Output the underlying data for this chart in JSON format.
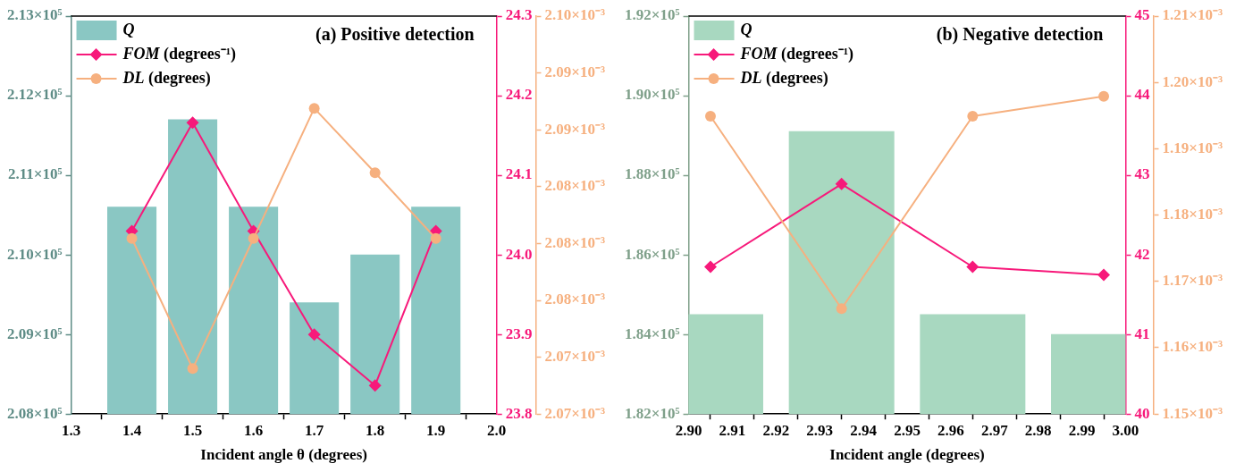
{
  "chart_data": [
    {
      "type": "bar",
      "title": "(a) Positive detection",
      "xlabel": "Incident angle θ (degrees)",
      "legend": "top left",
      "grid": false,
      "x": [
        1.4,
        1.5,
        1.6,
        1.7,
        1.8,
        1.9
      ],
      "xlim": [
        1.3,
        2.0
      ],
      "xticks": [
        1.3,
        1.4,
        1.5,
        1.6,
        1.7,
        1.8,
        1.9,
        {
          "value": 2,
          "label": "2.0"
        }
      ],
      "ylim": [
        208000,
        213000
      ],
      "yticks": [
        {
          "value": 208000,
          "label": "2.08×10⁵"
        },
        {
          "value": 209000,
          "label": "2.09×10⁵"
        },
        {
          "value": 210000,
          "label": "2.10×10⁵"
        },
        {
          "value": 211000,
          "label": "2.11×10⁵"
        },
        {
          "value": 212000,
          "label": "2.12×10⁵"
        },
        {
          "value": 213000,
          "label": "2.13×10⁵"
        }
      ],
      "y2lim": [
        23.8,
        24.3
      ],
      "y2ticks": [
        23.8,
        23.9,
        {
          "value": 24,
          "label": "24.0"
        },
        24.1,
        24.2,
        24.3
      ],
      "y3lim": [
        0.0020665,
        0.002098
      ],
      "y3ticks": [
        {
          "value": 0.0020665,
          "label": "2.07×10⁻³"
        },
        {
          "value": 0.002071,
          "label": "2.07×10⁻³"
        },
        {
          "value": 0.0020755,
          "label": "2.08×10⁻³"
        },
        {
          "value": 0.00208,
          "label": "2.08×10⁻³"
        },
        {
          "value": 0.0020845,
          "label": "2.08×10⁻³"
        },
        {
          "value": 0.002089,
          "label": "2.09×10⁻³"
        },
        {
          "value": 0.0020935,
          "label": "2.09×10⁻³"
        },
        {
          "value": 0.002098,
          "label": "2.10×10⁻³"
        }
      ],
      "series": [
        {
          "name": "Q",
          "color": "#8ac7c3",
          "values": [
            210600,
            211700,
            210600,
            209400,
            210000,
            210600
          ]
        },
        {
          "name": "FOM (degrees⁻¹)",
          "type": "line",
          "axis": "y2",
          "marker": "diamond",
          "color": "#f7197a",
          "values": [
            24.03,
            24.166,
            24.03,
            23.9,
            23.836,
            24.03
          ]
        },
        {
          "name": "DL (degrees)",
          "type": "line",
          "axis": "y3",
          "marker": "circle",
          "color": "#f6b07f",
          "values": [
            0.0020804,
            0.0020701,
            0.0020804,
            0.0020907,
            0.0020856,
            0.0020804
          ]
        }
      ]
    },
    {
      "type": "bar",
      "title": "(b) Negative detection",
      "xlabel": "Incident angle (degrees)",
      "legend": "top left",
      "grid": false,
      "x": [
        2.905,
        2.935,
        2.965,
        2.995
      ],
      "xlim": [
        2.9,
        3.0
      ],
      "xticks": [
        {
          "value": 2.9,
          "label": "2.90"
        },
        2.91,
        2.92,
        2.93,
        2.94,
        2.95,
        2.96,
        2.97,
        2.98,
        2.99,
        {
          "value": 3,
          "label": "3.00"
        }
      ],
      "ylim": [
        182000,
        192000
      ],
      "yticks": [
        {
          "value": 182000,
          "label": "1.82×10⁵"
        },
        {
          "value": 184000,
          "label": "1.84×10⁵"
        },
        {
          "value": 186000,
          "label": "1.86×10⁵"
        },
        {
          "value": 188000,
          "label": "1.88×10⁵"
        },
        {
          "value": 190000,
          "label": "1.90×10⁵"
        },
        {
          "value": 192000,
          "label": "1.92×10⁵"
        }
      ],
      "y2lim": [
        40,
        45
      ],
      "y2ticks": [
        40,
        41,
        42,
        43,
        44,
        45
      ],
      "y3lim": [
        0.00115,
        0.00121
      ],
      "y3ticks": [
        {
          "value": 0.00115,
          "label": "1.15×10⁻³"
        },
        {
          "value": 0.00116,
          "label": "1.16×10⁻³"
        },
        {
          "value": 0.00117,
          "label": "1.17×10⁻³"
        },
        {
          "value": 0.00118,
          "label": "1.18×10⁻³"
        },
        {
          "value": 0.00119,
          "label": "1.19×10⁻³"
        },
        {
          "value": 0.0012,
          "label": "1.20×10⁻³"
        },
        {
          "value": 0.00121,
          "label": "1.21×10⁻³"
        }
      ],
      "series": [
        {
          "name": "Q",
          "color": "#a8d8c0",
          "values": [
            184500,
            189100,
            184500,
            184000
          ]
        },
        {
          "name": "FOM (degrees⁻¹)",
          "type": "line",
          "axis": "y2",
          "marker": "diamond",
          "color": "#f7197a",
          "values": [
            41.85,
            42.89,
            41.85,
            41.75
          ]
        },
        {
          "name": "DL (degrees)",
          "type": "line",
          "axis": "y3",
          "marker": "circle",
          "color": "#f6b07f",
          "values": [
            0.0011949,
            0.0011659,
            0.0011949,
            0.0011979
          ]
        }
      ]
    }
  ]
}
